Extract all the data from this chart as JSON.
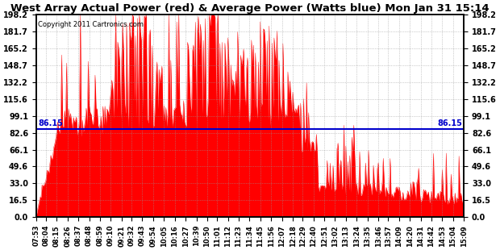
{
  "title": "West Array Actual Power (red) & Average Power (Watts blue) Mon Jan 31 15:14",
  "copyright": "Copyright 2011 Cartronics.com",
  "average_power": 86.15,
  "y_min": 0.0,
  "y_max": 198.2,
  "y_ticks": [
    0.0,
    16.5,
    33.0,
    49.6,
    66.1,
    82.6,
    99.1,
    115.6,
    132.2,
    148.7,
    165.2,
    181.7,
    198.2
  ],
  "x_labels": [
    "07:53",
    "08:04",
    "08:15",
    "08:26",
    "08:37",
    "08:48",
    "08:59",
    "09:10",
    "09:21",
    "09:32",
    "09:43",
    "09:54",
    "10:05",
    "10:16",
    "10:27",
    "10:39",
    "10:50",
    "11:01",
    "11:12",
    "11:23",
    "11:34",
    "11:45",
    "11:56",
    "12:07",
    "12:18",
    "12:29",
    "12:40",
    "12:51",
    "13:02",
    "13:13",
    "13:24",
    "13:35",
    "13:46",
    "13:57",
    "14:09",
    "14:20",
    "14:31",
    "14:42",
    "14:53",
    "15:04",
    "15:09"
  ],
  "area_color": "#FF0000",
  "line_color": "#0000CC",
  "background_color": "#FFFFFF",
  "grid_color": "#AAAAAA",
  "title_fontsize": 10,
  "label_fontsize": 7.5
}
